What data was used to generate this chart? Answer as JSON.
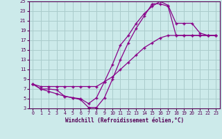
{
  "xlabel": "Windchill (Refroidissement éolien,°C)",
  "bg_color": "#cceaea",
  "grid_color": "#aacccc",
  "line_color": "#880088",
  "xlim": [
    -0.5,
    23.5
  ],
  "ylim": [
    3,
    25
  ],
  "xticks": [
    0,
    1,
    2,
    3,
    4,
    5,
    6,
    7,
    8,
    9,
    10,
    11,
    12,
    13,
    14,
    15,
    16,
    17,
    18,
    19,
    20,
    21,
    22,
    23
  ],
  "yticks": [
    3,
    5,
    7,
    9,
    11,
    13,
    15,
    17,
    19,
    21,
    23,
    25
  ],
  "series": [
    {
      "x": [
        0,
        1,
        2,
        3,
        4,
        5,
        6,
        7,
        8,
        9,
        10,
        11,
        12,
        13,
        14,
        15,
        16,
        17,
        18,
        19,
        20,
        21,
        22,
        23
      ],
      "y": [
        8,
        7,
        6.5,
        6.0,
        5.5,
        5.2,
        4.8,
        3.2,
        3.2,
        5.2,
        9.0,
        13.0,
        16.5,
        19.5,
        22.0,
        24.5,
        24.5,
        24.0,
        18.0,
        18.0,
        18.0,
        18.0,
        18.0,
        18.0
      ]
    },
    {
      "x": [
        0,
        1,
        2,
        3,
        4,
        5,
        6,
        7,
        8,
        9,
        10,
        11,
        12,
        13,
        14,
        15,
        16,
        17,
        18,
        19,
        20,
        21,
        22,
        23
      ],
      "y": [
        8,
        7,
        7.0,
        6.8,
        5.5,
        5.2,
        5.0,
        4.0,
        5.2,
        8.5,
        12.0,
        16.0,
        18.0,
        20.5,
        22.5,
        24.0,
        25.0,
        24.2,
        20.5,
        20.5,
        20.5,
        18.5,
        18.0,
        18.0
      ]
    },
    {
      "x": [
        0,
        1,
        2,
        3,
        4,
        5,
        6,
        7,
        8,
        9,
        10,
        11,
        12,
        13,
        14,
        15,
        16,
        17,
        18,
        19,
        20,
        21,
        22,
        23
      ],
      "y": [
        8,
        7.5,
        7.5,
        7.5,
        7.5,
        7.5,
        7.5,
        7.5,
        7.5,
        8.5,
        9.5,
        11.0,
        12.5,
        14.0,
        15.5,
        16.5,
        17.5,
        18.0,
        18.0,
        18.0,
        18.0,
        18.0,
        18.0,
        18.0
      ]
    }
  ]
}
